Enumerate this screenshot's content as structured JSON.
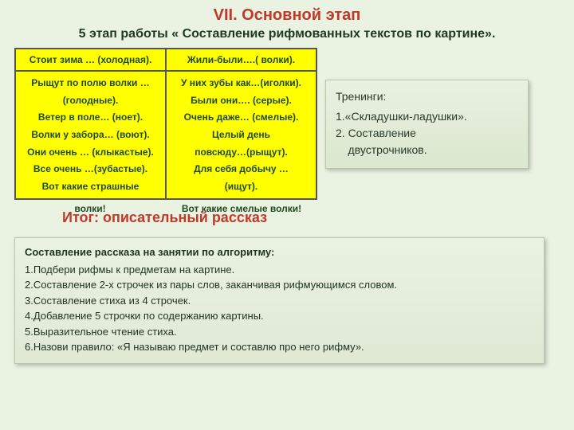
{
  "colors": {
    "slide_bg": "#eaf2e2",
    "title_red": "#c0392b",
    "text_green": "#1f3a1f",
    "yellow_cell": "#ffff00",
    "cell_border": "#555555",
    "box_border": "#b7c9a6"
  },
  "title": "VII. Основной этап",
  "subtitle": "5 этап работы « Составление  рифмованных текстов по картине».",
  "poem_table": {
    "col_left_head": "Стоит зима … (холодная).",
    "col_right_head": "Жили-были….( волки).",
    "left_lines": [
      "Рыщут по полю волки …",
      "(голодные).",
      "Ветер в поле… (ноет).",
      "Волки у забора… (воют).",
      "Они очень … (клыкастые).",
      "Все очень …(зубастые).",
      "Вот какие страшные"
    ],
    "right_lines": [
      "У них зубы как…(иголки).",
      "Были они…. (серые).",
      "Очень даже… (смелые).",
      "Целый день",
      "повсюду…(рыщут).",
      "Для себя добычу …",
      "(ищут)."
    ],
    "left_overflow": "волки!",
    "right_overflow": "Вот какие смелые волки!"
  },
  "trainings": {
    "title": "Тренинги:",
    "line1": "1.«Складушки-ладушки».",
    "line2_a": "2. Составление",
    "line2_b": "    двустрочников."
  },
  "summary_label": "Итог: описательный рассказ",
  "algorithm": {
    "title": "Составление рассказа на занятии по алгоритму:",
    "steps": [
      "1.Подбери рифмы к предметам на картине.",
      "2.Составление 2-х строчек из пары слов, заканчивая рифмующимся словом.",
      "3.Составление стиха из 4 строчек.",
      "4.Добавление 5 строчки по содержанию картины.",
      "5.Выразительное чтение стиха.",
      "6.Назови правило: «Я называю предмет и составлю про него рифму»."
    ]
  }
}
